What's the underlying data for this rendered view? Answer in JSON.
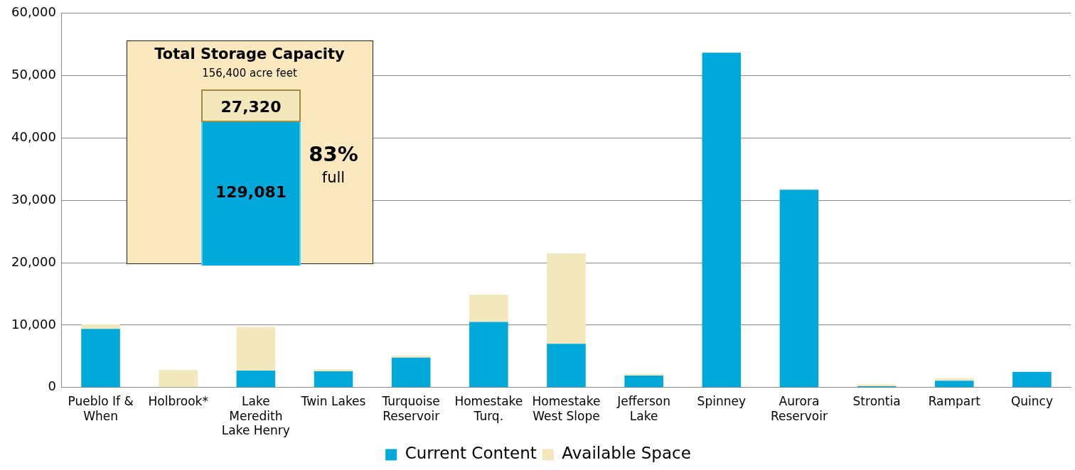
{
  "chart_data": {
    "type": "bar",
    "stacked": true,
    "categories": [
      "Pueblo If & When",
      "Holbrook*",
      "Lake Meredith Lake Henry",
      "Twin Lakes",
      "Turquoise Reservoir",
      "Homestake Turq.",
      "Homestake West Slope",
      "Jefferson Lake",
      "Spinney",
      "Aurora Reservoir",
      "Strontia",
      "Rampart",
      "Quincy"
    ],
    "series": [
      {
        "name": "Current Content",
        "color": "#00a9d9",
        "values": [
          9400,
          0,
          2700,
          2600,
          4800,
          10500,
          7000,
          1900,
          53700,
          31700,
          200,
          1100,
          2500
        ]
      },
      {
        "name": "Available Space",
        "color": "#f3e7bc",
        "values": [
          700,
          2800,
          7000,
          300,
          300,
          4400,
          14500,
          300,
          0,
          0,
          300,
          400,
          0
        ]
      }
    ],
    "ylim": [
      0,
      60000
    ],
    "yticks": [
      {
        "value": 0,
        "label": "0"
      },
      {
        "value": 10000,
        "label": "10,000"
      },
      {
        "value": 20000,
        "label": "20,000"
      },
      {
        "value": 30000,
        "label": "30,000"
      },
      {
        "value": 40000,
        "label": "40,000"
      },
      {
        "value": 50000,
        "label": "50,000"
      },
      {
        "value": 60000,
        "label": "60,000"
      }
    ],
    "grid": "y",
    "legend": "bottom",
    "annotations": [
      "Total Storage Capacity",
      "156,400  acre feet",
      "27,320",
      "129,081",
      "83%",
      "full"
    ]
  }
}
